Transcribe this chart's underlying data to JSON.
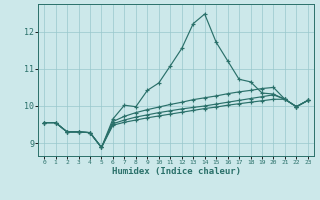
{
  "xlabel": "Humidex (Indice chaleur)",
  "bg_color": "#cce8ea",
  "grid_color": "#99c8cc",
  "line_color": "#2a706a",
  "xlim": [
    -0.5,
    23.5
  ],
  "ylim": [
    8.65,
    12.75
  ],
  "xticks": [
    0,
    1,
    2,
    3,
    4,
    5,
    6,
    7,
    8,
    9,
    10,
    11,
    12,
    13,
    14,
    15,
    16,
    17,
    18,
    19,
    20,
    21,
    22,
    23
  ],
  "yticks": [
    9,
    10,
    11,
    12
  ],
  "lines": [
    {
      "x": [
        0,
        1,
        2,
        3,
        4,
        5,
        6,
        7,
        8,
        9,
        10,
        11,
        12,
        13,
        14,
        15,
        16,
        17,
        18,
        19,
        20,
        21,
        22,
        23
      ],
      "y": [
        9.55,
        9.55,
        9.3,
        9.3,
        9.28,
        8.88,
        9.65,
        10.02,
        9.98,
        10.42,
        10.62,
        11.08,
        11.55,
        12.22,
        12.48,
        11.72,
        11.22,
        10.72,
        10.65,
        10.35,
        10.32,
        10.18,
        9.98,
        10.15
      ]
    },
    {
      "x": [
        0,
        1,
        2,
        3,
        4,
        5,
        6,
        7,
        8,
        9,
        10,
        11,
        12,
        13,
        14,
        15,
        16,
        17,
        18,
        19,
        20,
        21,
        22,
        23
      ],
      "y": [
        9.55,
        9.55,
        9.3,
        9.3,
        9.28,
        8.88,
        9.58,
        9.72,
        9.82,
        9.9,
        9.97,
        10.04,
        10.1,
        10.17,
        10.22,
        10.27,
        10.33,
        10.38,
        10.42,
        10.47,
        10.5,
        10.18,
        9.98,
        10.15
      ]
    },
    {
      "x": [
        0,
        1,
        2,
        3,
        4,
        5,
        6,
        7,
        8,
        9,
        10,
        11,
        12,
        13,
        14,
        15,
        16,
        17,
        18,
        19,
        20,
        21,
        22,
        23
      ],
      "y": [
        9.55,
        9.55,
        9.3,
        9.3,
        9.28,
        8.88,
        9.52,
        9.62,
        9.7,
        9.76,
        9.82,
        9.87,
        9.92,
        9.96,
        10.0,
        10.05,
        10.1,
        10.15,
        10.2,
        10.25,
        10.3,
        10.18,
        9.98,
        10.15
      ]
    },
    {
      "x": [
        0,
        1,
        2,
        3,
        4,
        5,
        6,
        7,
        8,
        9,
        10,
        11,
        12,
        13,
        14,
        15,
        16,
        17,
        18,
        19,
        20,
        21,
        22,
        23
      ],
      "y": [
        9.55,
        9.55,
        9.3,
        9.3,
        9.28,
        8.88,
        9.48,
        9.56,
        9.62,
        9.68,
        9.73,
        9.78,
        9.83,
        9.88,
        9.93,
        9.97,
        10.02,
        10.06,
        10.1,
        10.14,
        10.18,
        10.18,
        9.98,
        10.15
      ]
    }
  ]
}
